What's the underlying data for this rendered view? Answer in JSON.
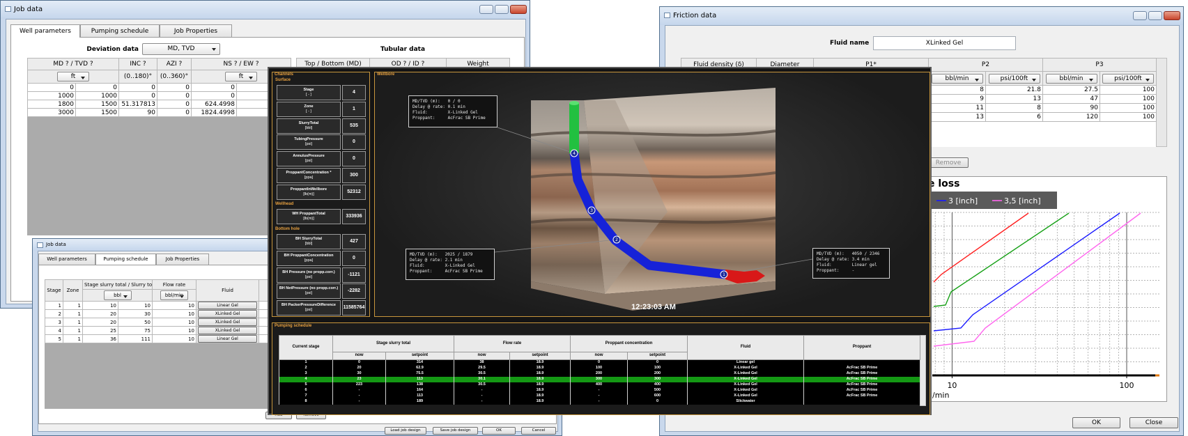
{
  "job_data": {
    "title": "Job data",
    "tabs": [
      "Well parameters",
      "Pumping schedule",
      "Job Properties"
    ],
    "deviation_label": "Deviation data",
    "deviation_value": "MD, TVD",
    "tubular_label": "Tubular data",
    "deviation_headers": [
      "MD ? / TVD ?",
      "INC ?",
      "AZI ?",
      "NS ? / EW ?"
    ],
    "deviation_units": [
      "ft",
      "(0..180)°",
      "(0..360)°",
      "ft"
    ],
    "deviation_rows": [
      [
        0,
        0,
        0,
        0,
        0
      ],
      [
        1000,
        1000,
        0,
        0,
        0
      ],
      [
        1800,
        1500,
        51.317813,
        0,
        624.4998
      ],
      [
        3000,
        1500,
        90,
        0,
        1824.4998
      ]
    ],
    "tubular_headers": [
      "Top / Bottom (MD)",
      "OD ? / ID ?",
      "Weight"
    ]
  },
  "friction_data": {
    "title": "Friction data",
    "fluid_name_label": "Fluid name",
    "fluid_name": "XLinked Gel",
    "headers": [
      "Fluid density (δ)",
      "Diameter",
      "P1*",
      "P2",
      "P3"
    ],
    "units": [
      "bbl/min",
      "psi/100ft",
      "bbl/min",
      "psi/100ft"
    ],
    "rows": [
      [
        8,
        21.8,
        27.5,
        100
      ],
      [
        9,
        13,
        47,
        100
      ],
      [
        11,
        8,
        90,
        100
      ],
      [
        13,
        6,
        120,
        100
      ]
    ],
    "remove": "Remove",
    "buttons": [
      "OK",
      "Close"
    ],
    "chart_data": {
      "type": "line",
      "title": "e loss",
      "xlabel": "/min",
      "log_x": true,
      "xlim": [
        7.7,
        154
      ],
      "xticks": [
        10,
        100
      ],
      "grid": true,
      "legend_entries": [
        {
          "name": "3 [inch]",
          "color": "#1a1aff"
        },
        {
          "name": "3,5 [inch]",
          "color": "#ff66ee"
        }
      ]
    }
  },
  "job_data_small": {
    "title": "Job data",
    "tabs": [
      "Well parameters",
      "Pumping schedule",
      "Job Properties"
    ],
    "headers": [
      "Stage",
      "Zone",
      "Stage slurry total / Slurry total",
      "Flow rate",
      "Fluid"
    ],
    "units": [
      "bbl",
      "bbl/min"
    ],
    "rows": [
      [
        1,
        1,
        10,
        10,
        10,
        "Linear Gel"
      ],
      [
        2,
        1,
        20,
        30,
        10,
        "XLinked Gel"
      ],
      [
        3,
        1,
        20,
        50,
        10,
        "XLinked Gel"
      ],
      [
        4,
        1,
        25,
        75,
        10,
        "XLinked Gel"
      ],
      [
        5,
        1,
        36,
        111,
        10,
        "Linear Gel"
      ]
    ],
    "buttons": [
      "Add",
      "Remove",
      "Load job design",
      "Save job design",
      "OK",
      "Cancel"
    ]
  },
  "monitor": {
    "channels_title": "Channels",
    "wellbore_title": "Wellbore",
    "sections": [
      {
        "title": "Surface",
        "params": [
          {
            "name": "Stage",
            "unit": "[ - ]",
            "value": 4
          },
          {
            "name": "Zone",
            "unit": "[ - ]",
            "value": 1
          },
          {
            "name": "SlurryTotal",
            "unit": "[bbl]",
            "value": 535
          },
          {
            "name": "TubingPressure",
            "unit": "[psi]",
            "value": 0
          },
          {
            "name": "AnnulusPressure",
            "unit": "[psi]",
            "value": 0
          },
          {
            "name": "ProppantConcentration *",
            "unit": "[ppa]",
            "value": 300
          },
          {
            "name": "ProppantInWellbore",
            "unit": "[lb(m)]",
            "value": 52312
          }
        ]
      },
      {
        "title": "Wellhead",
        "params": [
          {
            "name": "WH ProppantTotal",
            "unit": "[lb(m)]",
            "value": 333936
          }
        ]
      },
      {
        "title": "Bottom hole",
        "params": [
          {
            "name": "BH SlurryTotal",
            "unit": "[bbl]",
            "value": 427
          },
          {
            "name": "BH ProppantConcentration",
            "unit": "[ppa]",
            "value": 0
          },
          {
            "name": "BH Pressure (no propp.corr.)",
            "unit": "[psi]",
            "value": -1121
          },
          {
            "name": "BH NetPressure (no propp.corr.)",
            "unit": "[psi]",
            "value": -2282
          },
          {
            "name": "BH PackerPressureDifference",
            "unit": "[psi]",
            "value": 11585764
          }
        ]
      }
    ],
    "annotations": [
      [
        "MD/TVD (m):   0 / 0",
        "Delay @ rate: 0.1 min",
        "Fluid:        X-Linked Gel",
        "Proppant:     AcFrac SB Prime"
      ],
      [
        "MD/TVD (m):   2025 / 1879",
        "Delay @ rate: 2.1 min",
        "Fluid:        X-Linked Gel",
        "Proppant:     AcFrac SB Prime"
      ],
      [
        "MD/TVD (m):   4050 / 2346",
        "Delay @ rate: 3.4 min",
        "Fluid:        Linear gel",
        "Proppant:     -"
      ]
    ],
    "markers": [
      4,
      3,
      2,
      1
    ],
    "time": "12:23:03 AM",
    "schedule": {
      "title": "Pumping schedule",
      "headers": [
        "Current stage",
        "Stage slurry total",
        "Flow rate",
        "Proppant concentration",
        "Fluid",
        "Proppant"
      ],
      "subheaders": [
        "now",
        "setpoint"
      ],
      "highlighted_stage": 4,
      "rows": [
        [
          1,
          0,
          314,
          38,
          18.9,
          0,
          0,
          "Linear gel",
          null
        ],
        [
          2,
          20,
          62.9,
          29.5,
          18.9,
          100,
          100,
          "X-Linked Gel",
          "AcFrac SB Prime"
        ],
        [
          3,
          30,
          75.5,
          30.5,
          18.9,
          200,
          200,
          "X-Linked Gel",
          "AcFrac SB Prime"
        ],
        [
          4,
          23,
          113,
          30.1,
          18.9,
          300,
          300,
          "X-Linked Gel",
          "AcFrac SB Prime"
        ],
        [
          5,
          223,
          138,
          30.5,
          18.9,
          400,
          400,
          "X-Linked Gel",
          "AcFrac SB Prime"
        ],
        [
          6,
          "-",
          164,
          "-",
          18.9,
          "-",
          500,
          "X-Linked Gel",
          "AcFrac SB Prime"
        ],
        [
          7,
          "-",
          113,
          "-",
          18.9,
          "-",
          600,
          "X-Linked Gel",
          "AcFrac SB Prime"
        ],
        [
          8,
          "-",
          189,
          "-",
          18.9,
          "-",
          0,
          "Slickwater",
          null
        ]
      ]
    }
  }
}
